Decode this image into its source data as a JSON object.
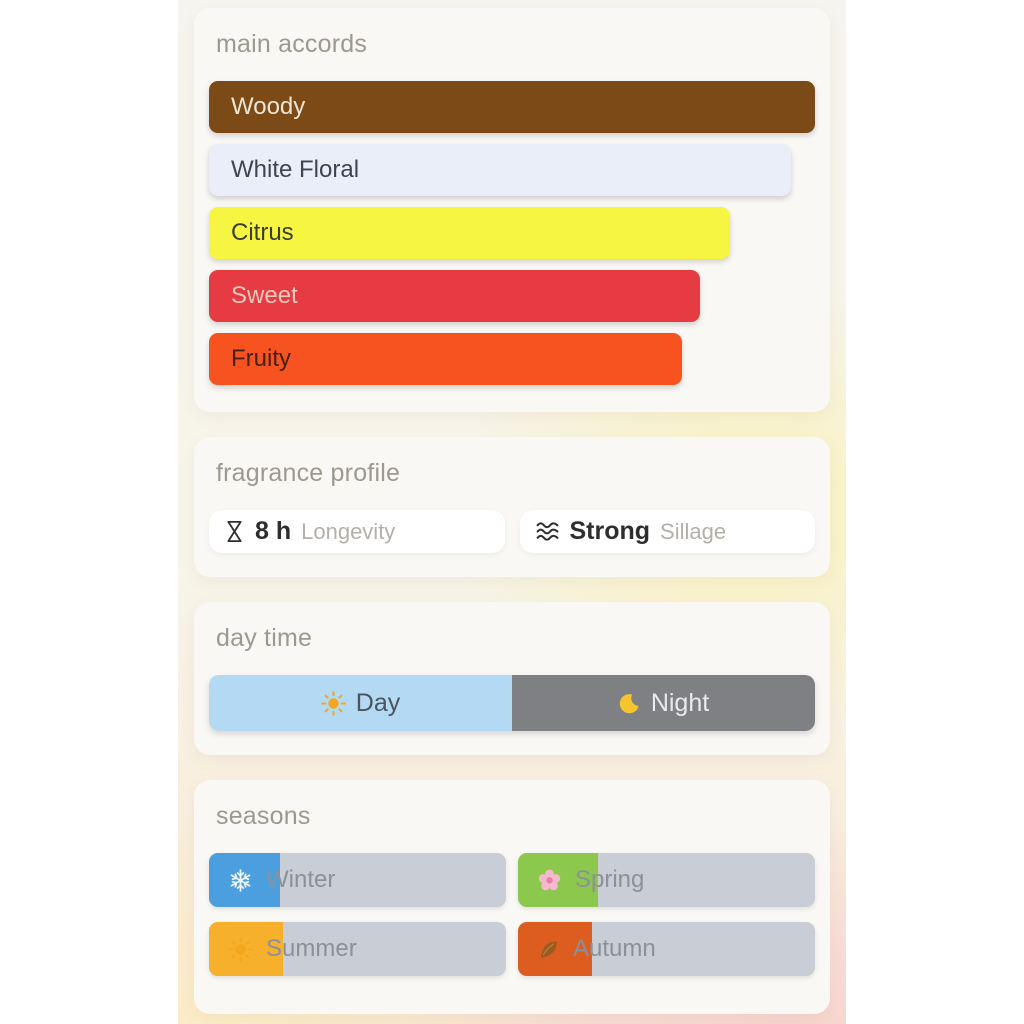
{
  "main_accords": {
    "title": "main accords",
    "bars": [
      {
        "label": "Woody",
        "width_pct": 100,
        "bg": "#7b4a16",
        "text_color": "#f0e5d1"
      },
      {
        "label": "White Floral",
        "width_pct": 96,
        "bg": "#e9eef9",
        "text_color": "#3f4450"
      },
      {
        "label": "Citrus",
        "width_pct": 86,
        "bg": "#f5f542",
        "text_color": "#3e3d2c"
      },
      {
        "label": "Sweet",
        "width_pct": 81,
        "bg": "#e63b42",
        "text_color": "#eec9bd"
      },
      {
        "label": "Fruity",
        "width_pct": 78,
        "bg": "#f65321",
        "text_color": "#47200e"
      }
    ]
  },
  "fragrance_profile": {
    "title": "fragrance profile",
    "stats": [
      {
        "icon": "hourglass-icon",
        "value": "8 h",
        "label": "Longevity"
      },
      {
        "icon": "waves-icon",
        "value": "Strong",
        "label": "Sillage"
      }
    ]
  },
  "day_time": {
    "title": "day time",
    "segments": [
      {
        "label": "Day",
        "icon": "sun-icon",
        "width_pct": 50,
        "bg": "#b4d9f3",
        "text_color": "#4a5560"
      },
      {
        "label": "Night",
        "icon": "moon-icon",
        "width_pct": 50,
        "bg": "#7e8084",
        "text_color": "#e9eaeb"
      }
    ]
  },
  "seasons": {
    "title": "seasons",
    "items": [
      {
        "label": "Winter",
        "icon": "snowflake-icon",
        "fill_pct": 24,
        "fill_color": "#4c9fdf"
      },
      {
        "label": "Spring",
        "icon": "blossom-icon",
        "fill_pct": 27,
        "fill_color": "#8cc84d"
      },
      {
        "label": "Summer",
        "icon": "sun-icon",
        "fill_pct": 25,
        "fill_color": "#f6b02b"
      },
      {
        "label": "Autumn",
        "icon": "leaf-icon",
        "fill_pct": 25,
        "fill_color": "#dd5d20"
      }
    ]
  }
}
